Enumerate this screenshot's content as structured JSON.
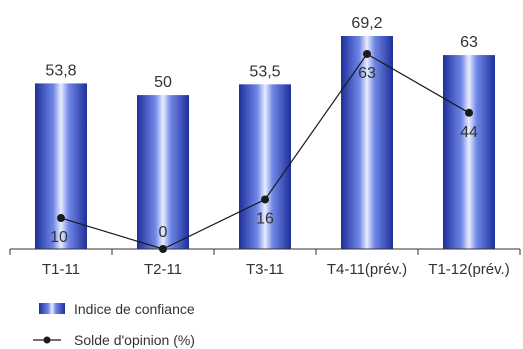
{
  "chart_data": {
    "type": "bar",
    "categories": [
      "T1-11",
      "T2-11",
      "T3-11",
      "T4-11(prév.)",
      "T1-12(prév.)"
    ],
    "series": [
      {
        "name": "Indice de confiance",
        "type": "bar",
        "values": [
          53.8,
          50,
          53.5,
          69.2,
          63
        ],
        "labels": [
          "53,8",
          "50",
          "53,5",
          "69,2",
          "63"
        ],
        "color": "#3a55c8"
      },
      {
        "name": "Solde d'opinion (%)",
        "type": "line",
        "values": [
          10,
          0,
          16,
          63,
          44
        ],
        "labels": [
          "10",
          "0",
          "16",
          "63",
          "44"
        ],
        "color": "#1a1a1a"
      }
    ],
    "title": "",
    "xlabel": "",
    "ylabel": "",
    "ylim": [
      0,
      70
    ],
    "grid": false,
    "legend": "bottom-left"
  }
}
